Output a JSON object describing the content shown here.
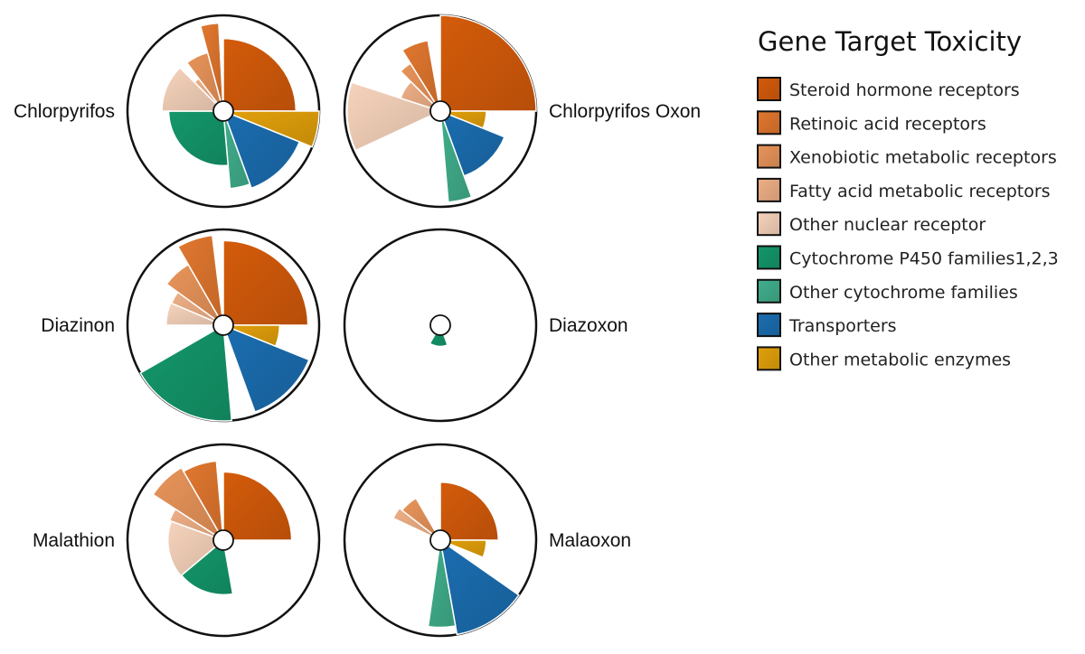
{
  "legend": {
    "title": "Gene Target Toxicity"
  },
  "chart_data": {
    "type": "polar-area",
    "categories": [
      {
        "name": "Steroid  hormone receptors",
        "color": "#d45b0b"
      },
      {
        "name": "Retinoic acid receptors",
        "color": "#e0772f"
      },
      {
        "name": "Xenobiotic metabolic receptors",
        "color": "#e8945a"
      },
      {
        "name": "Fatty acid metabolic receptors",
        "color": "#eeaf86"
      },
      {
        "name": "Other nuclear receptor",
        "color": "#f6d3bb"
      },
      {
        "name": "Cytochrome P450 families1,2,3",
        "color": "#14976a"
      },
      {
        "name": "Other cytochrome families",
        "color": "#40ae8c"
      },
      {
        "name": "Transporters",
        "color": "#1b6db0"
      },
      {
        "name": "Other metabolic enzymes",
        "color": "#e2a00a"
      }
    ],
    "max_radius_value": 1.0,
    "charts": [
      {
        "label": "Chlorpyrifos",
        "label_side": "left",
        "slices": [
          {
            "category": 0,
            "start": 0,
            "end": 90,
            "value": 0.73
          },
          {
            "category": 8,
            "start": 90,
            "end": 112,
            "value": 1.0
          },
          {
            "category": 7,
            "start": 112,
            "end": 160,
            "value": 0.84
          },
          {
            "category": 6,
            "start": 160,
            "end": 175,
            "value": 0.79
          },
          {
            "category": 5,
            "start": 175,
            "end": 270,
            "value": 0.52
          },
          {
            "category": 4,
            "start": 270,
            "end": 315,
            "value": 0.6
          },
          {
            "category": 3,
            "start": 315,
            "end": 323,
            "value": 0.36
          },
          {
            "category": 2,
            "start": 323,
            "end": 345,
            "value": 0.59
          },
          {
            "category": 1,
            "start": 345,
            "end": 357,
            "value": 0.91
          }
        ]
      },
      {
        "label": "Chlorpyrifos Oxon",
        "label_side": "right",
        "slices": [
          {
            "category": 0,
            "start": 0,
            "end": 90,
            "value": 1.0
          },
          {
            "category": 8,
            "start": 90,
            "end": 112,
            "value": 0.42
          },
          {
            "category": 7,
            "start": 112,
            "end": 160,
            "value": 0.69
          },
          {
            "category": 6,
            "start": 160,
            "end": 175,
            "value": 0.95
          },
          {
            "category": 4,
            "start": 245,
            "end": 288,
            "value": 0.97
          },
          {
            "category": 3,
            "start": 288,
            "end": 315,
            "value": 0.37
          },
          {
            "category": 2,
            "start": 315,
            "end": 328,
            "value": 0.54
          },
          {
            "category": 1,
            "start": 328,
            "end": 350,
            "value": 0.72
          }
        ]
      },
      {
        "label": "Diazinon",
        "label_side": "left",
        "slices": [
          {
            "category": 0,
            "start": 0,
            "end": 90,
            "value": 0.87
          },
          {
            "category": 8,
            "start": 90,
            "end": 112,
            "value": 0.54
          },
          {
            "category": 7,
            "start": 112,
            "end": 160,
            "value": 0.96
          },
          {
            "category": 5,
            "start": 175,
            "end": 240,
            "value": 1.0
          },
          {
            "category": 4,
            "start": 270,
            "end": 293,
            "value": 0.55
          },
          {
            "category": 3,
            "start": 293,
            "end": 306,
            "value": 0.54
          },
          {
            "category": 2,
            "start": 306,
            "end": 330,
            "value": 0.7
          },
          {
            "category": 1,
            "start": 330,
            "end": 353,
            "value": 0.94
          }
        ]
      },
      {
        "label": "Diazoxon",
        "label_side": "right",
        "slices": [
          {
            "category": 5,
            "start": 160,
            "end": 210,
            "value": 0.13
          }
        ]
      },
      {
        "label": "Malathion",
        "label_side": "left",
        "slices": [
          {
            "category": 0,
            "start": 0,
            "end": 90,
            "value": 0.68
          },
          {
            "category": 5,
            "start": 170,
            "end": 230,
            "value": 0.52
          },
          {
            "category": 4,
            "start": 230,
            "end": 290,
            "value": 0.53
          },
          {
            "category": 3,
            "start": 290,
            "end": 303,
            "value": 0.55
          },
          {
            "category": 2,
            "start": 303,
            "end": 330,
            "value": 0.86
          },
          {
            "category": 1,
            "start": 330,
            "end": 355,
            "value": 0.81
          }
        ]
      },
      {
        "label": "Malaoxon",
        "label_side": "right",
        "slices": [
          {
            "category": 0,
            "start": 0,
            "end": 90,
            "value": 0.56
          },
          {
            "category": 8,
            "start": 90,
            "end": 112,
            "value": 0.42
          },
          {
            "category": 7,
            "start": 125,
            "end": 170,
            "value": 1.0
          },
          {
            "category": 6,
            "start": 170,
            "end": 188,
            "value": 0.9
          },
          {
            "category": 3,
            "start": 295,
            "end": 308,
            "value": 0.49
          },
          {
            "category": 2,
            "start": 308,
            "end": 330,
            "value": 0.45
          },
          {
            "category": 1,
            "start": 350,
            "end": 352,
            "value": 0.4
          }
        ]
      }
    ]
  }
}
